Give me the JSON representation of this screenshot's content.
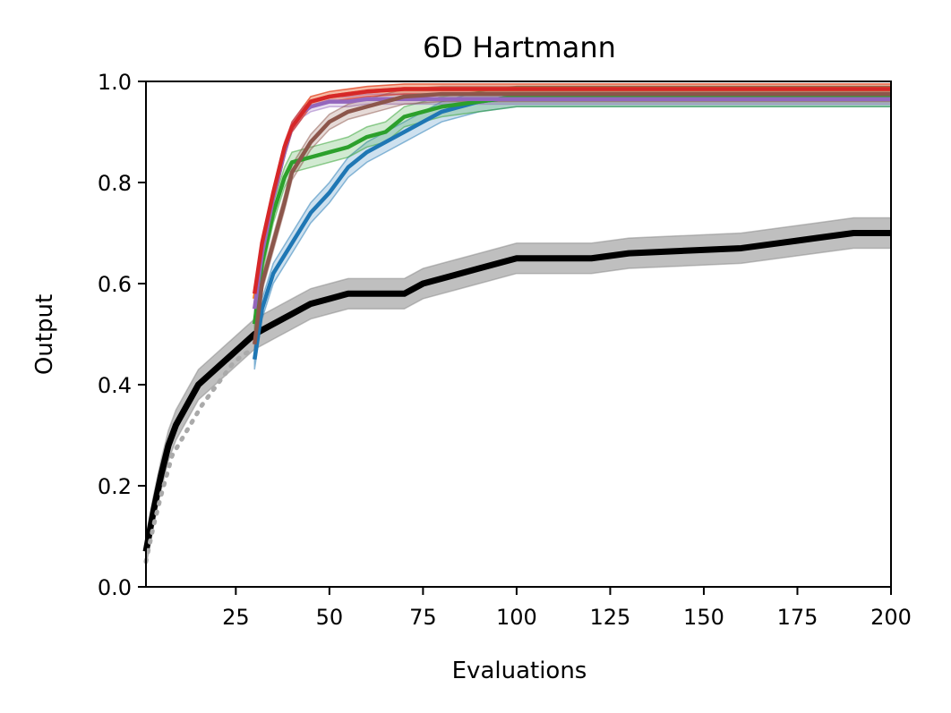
{
  "chart_data": {
    "type": "line",
    "title": "6D Hartmann",
    "xlabel": "Evaluations",
    "ylabel": "Output",
    "xlim": [
      1,
      200
    ],
    "ylim": [
      0,
      1
    ],
    "xticks": [
      25,
      50,
      75,
      100,
      125,
      150,
      175,
      200
    ],
    "yticks": [
      0.0,
      0.2,
      0.4,
      0.6,
      0.8,
      1.0
    ],
    "xtick_labels": [
      "25",
      "50",
      "75",
      "100",
      "125",
      "150",
      "175",
      "200"
    ],
    "ytick_labels": [
      "0.0",
      "0.2",
      "0.4",
      "0.6",
      "0.8",
      "1.0"
    ],
    "grid": false,
    "legend": "none",
    "series": [
      {
        "color": "#000000",
        "style": "solid",
        "band": true,
        "x": [
          1,
          3,
          5,
          7,
          9,
          12,
          15,
          18,
          21,
          24,
          27,
          30,
          35,
          40,
          45,
          50,
          55,
          60,
          70,
          75,
          80,
          90,
          100,
          120,
          130,
          160,
          170,
          180,
          190,
          200
        ],
        "y": [
          0.07,
          0.15,
          0.22,
          0.28,
          0.32,
          0.36,
          0.4,
          0.42,
          0.44,
          0.46,
          0.48,
          0.5,
          0.52,
          0.54,
          0.56,
          0.57,
          0.58,
          0.58,
          0.58,
          0.6,
          0.61,
          0.63,
          0.65,
          0.65,
          0.66,
          0.67,
          0.68,
          0.69,
          0.7,
          0.7
        ],
        "band_width": 0.03
      },
      {
        "color": "#aaaaaa",
        "style": "dotted",
        "band": false,
        "x": [
          1,
          3,
          5,
          8,
          12,
          16,
          20,
          24,
          27,
          30
        ],
        "y": [
          0.05,
          0.12,
          0.18,
          0.26,
          0.31,
          0.36,
          0.4,
          0.44,
          0.46,
          0.47
        ]
      },
      {
        "color": "#1f77b4",
        "style": "solid",
        "band": true,
        "x": [
          30,
          32,
          35,
          40,
          45,
          50,
          55,
          60,
          65,
          70,
          75,
          80,
          90,
          100,
          150,
          200
        ],
        "y": [
          0.45,
          0.55,
          0.62,
          0.68,
          0.74,
          0.78,
          0.83,
          0.86,
          0.88,
          0.9,
          0.92,
          0.94,
          0.96,
          0.97,
          0.97,
          0.97
        ],
        "band_width": 0.02
      },
      {
        "color": "#2ca02c",
        "style": "solid",
        "band": true,
        "x": [
          30,
          32,
          35,
          38,
          40,
          45,
          50,
          55,
          60,
          65,
          70,
          75,
          80,
          90,
          100,
          150,
          200
        ],
        "y": [
          0.52,
          0.64,
          0.74,
          0.81,
          0.84,
          0.85,
          0.86,
          0.87,
          0.89,
          0.9,
          0.93,
          0.94,
          0.95,
          0.96,
          0.97,
          0.97,
          0.97
        ],
        "band_width": 0.02
      },
      {
        "color": "#ff7f0e",
        "style": "solid",
        "band": true,
        "x": [
          30,
          32,
          35,
          38,
          40,
          43,
          45,
          50,
          55,
          60,
          70,
          100,
          200
        ],
        "y": [
          0.57,
          0.66,
          0.77,
          0.86,
          0.91,
          0.94,
          0.96,
          0.97,
          0.975,
          0.98,
          0.985,
          0.985,
          0.985
        ],
        "band_width": 0.01
      },
      {
        "color": "#9467bd",
        "style": "solid",
        "band": true,
        "x": [
          30,
          32,
          35,
          38,
          40,
          43,
          45,
          50,
          55,
          60,
          100,
          200
        ],
        "y": [
          0.55,
          0.66,
          0.77,
          0.86,
          0.91,
          0.94,
          0.95,
          0.96,
          0.96,
          0.965,
          0.965,
          0.965
        ],
        "band_width": 0.01
      },
      {
        "color": "#8c564b",
        "style": "solid",
        "band": true,
        "x": [
          30,
          32,
          35,
          38,
          40,
          45,
          50,
          55,
          60,
          65,
          70,
          80,
          100,
          200
        ],
        "y": [
          0.48,
          0.6,
          0.68,
          0.76,
          0.82,
          0.88,
          0.92,
          0.94,
          0.95,
          0.96,
          0.97,
          0.975,
          0.975,
          0.975
        ],
        "band_width": 0.015
      },
      {
        "color": "#d62728",
        "style": "solid",
        "band": true,
        "x": [
          30,
          32,
          35,
          38,
          40,
          43,
          45,
          50,
          55,
          60,
          70,
          100,
          200
        ],
        "y": [
          0.58,
          0.68,
          0.78,
          0.87,
          0.91,
          0.94,
          0.96,
          0.97,
          0.975,
          0.98,
          0.985,
          0.985,
          0.985
        ],
        "band_width": 0.01
      }
    ]
  }
}
